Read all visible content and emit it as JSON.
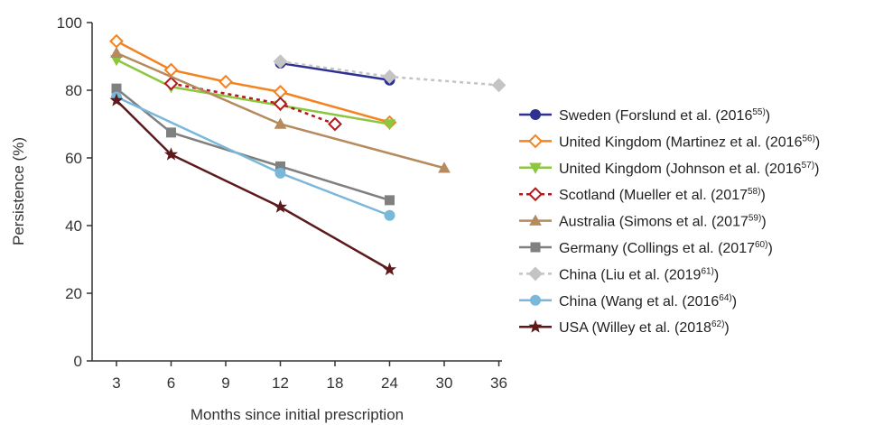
{
  "chart_data": {
    "type": "line",
    "title": "",
    "xlabel": "Months since initial prescription",
    "ylabel": "Persistence (%)",
    "ylim": [
      0,
      100
    ],
    "yticks": [
      "0",
      "20",
      "40",
      "60",
      "80",
      "100"
    ],
    "categories": [
      "3",
      "6",
      "9",
      "12",
      "18",
      "24",
      "30",
      "36"
    ],
    "grid": false,
    "legend_position": "right",
    "series": [
      {
        "name": "Sweden (Forslund et al. (2016",
        "ref": "55)",
        "close": ")",
        "color": "#2e3192",
        "marker": "circle",
        "filled": true,
        "dash": false,
        "points": [
          [
            "12",
            88
          ],
          [
            "24",
            83
          ]
        ]
      },
      {
        "name": "United Kingdom (Martinez et al. (2016",
        "ref": "56)",
        "close": ")",
        "color": "#f58220",
        "marker": "diamond",
        "filled": false,
        "dash": false,
        "points": [
          [
            "3",
            94.5
          ],
          [
            "6",
            86
          ],
          [
            "9",
            82.5
          ],
          [
            "12",
            79.5
          ],
          [
            "24",
            70.5
          ]
        ]
      },
      {
        "name": "United Kingdom (Johnson et al. (2016",
        "ref": "57)",
        "close": ")",
        "color": "#8dc63f",
        "marker": "triangle-down",
        "filled": true,
        "dash": false,
        "points": [
          [
            "3",
            89
          ],
          [
            "6",
            81
          ],
          [
            "12",
            75.5
          ],
          [
            "24",
            70
          ]
        ]
      },
      {
        "name": "Scotland (Mueller et al. (2017",
        "ref": "58)",
        "close": ")",
        "color": "#b0191d",
        "marker": "diamond",
        "filled": false,
        "dash": true,
        "points": [
          [
            "6",
            82
          ],
          [
            "12",
            76
          ],
          [
            "18",
            70
          ]
        ]
      },
      {
        "name": "Australia (Simons et al. (2017",
        "ref": "59)",
        "close": ")",
        "color": "#b58b5e",
        "marker": "triangle-up",
        "filled": true,
        "dash": false,
        "points": [
          [
            "3",
            91
          ],
          [
            "12",
            70
          ],
          [
            "30",
            57
          ]
        ]
      },
      {
        "name": "Germany (Collings et al. (2017",
        "ref": "60)",
        "close": ")",
        "color": "#808080",
        "marker": "square",
        "filled": true,
        "dash": false,
        "points": [
          [
            "3",
            80.5
          ],
          [
            "6",
            67.5
          ],
          [
            "12",
            57.5
          ],
          [
            "24",
            47.5
          ]
        ]
      },
      {
        "name": "China (Liu et al. (2019",
        "ref": "61)",
        "close": ")",
        "color": "#c4c4c4",
        "marker": "diamond",
        "filled": true,
        "dash": true,
        "points": [
          [
            "12",
            88.5
          ],
          [
            "24",
            84
          ],
          [
            "36",
            81.5
          ]
        ]
      },
      {
        "name": "China (Wang et al. (2016",
        "ref": "64)",
        "close": ")",
        "color": "#79b8da",
        "marker": "circle",
        "filled": true,
        "dash": false,
        "points": [
          [
            "3",
            78
          ],
          [
            "12",
            55.5
          ],
          [
            "24",
            43
          ]
        ]
      },
      {
        "name": "USA (Willey et al. (2018",
        "ref": "62)",
        "close": ")",
        "color": "#5c1a1b",
        "marker": "star",
        "filled": true,
        "dash": false,
        "points": [
          [
            "3",
            77
          ],
          [
            "6",
            61
          ],
          [
            "12",
            45.5
          ],
          [
            "24",
            27
          ]
        ]
      }
    ]
  }
}
